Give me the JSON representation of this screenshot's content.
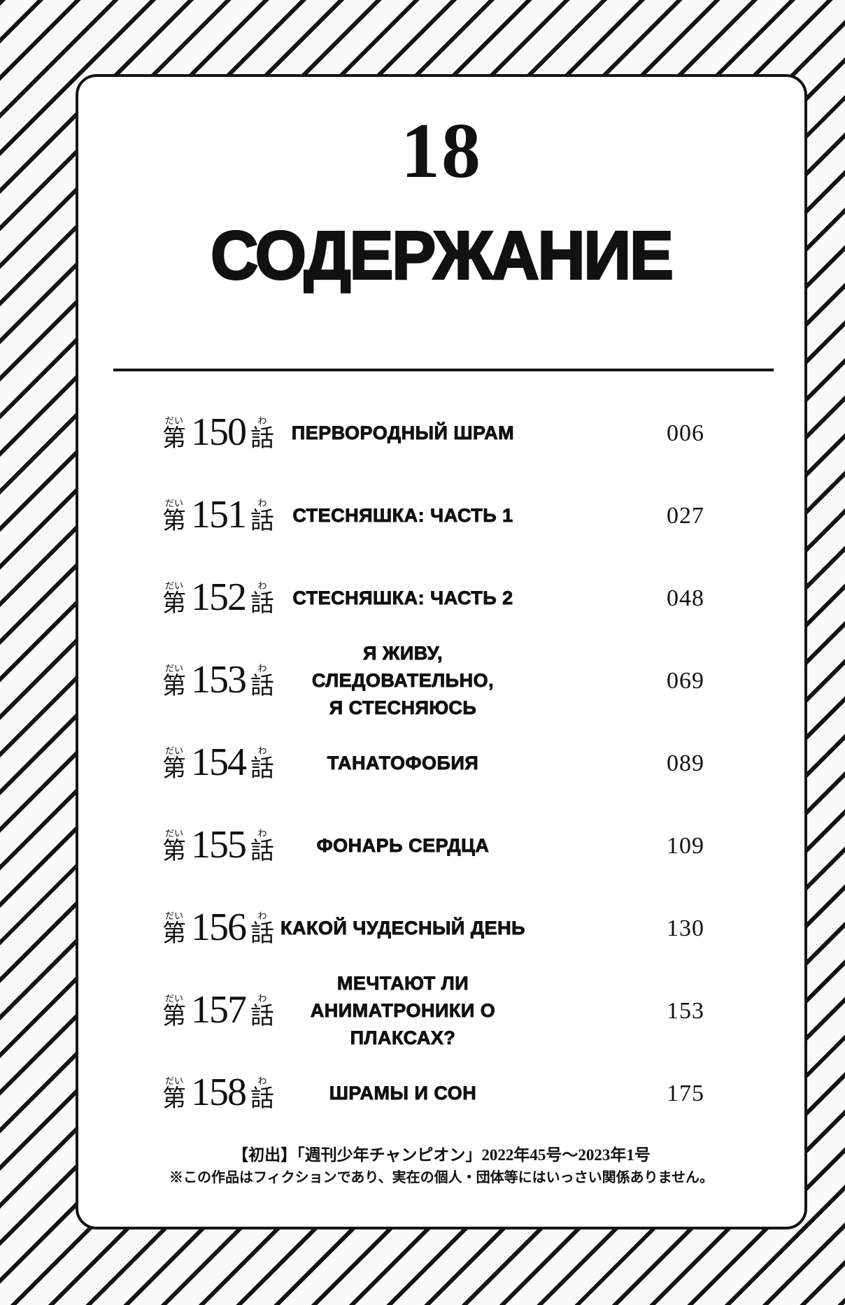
{
  "colors": {
    "ink": "#141414",
    "paper": "#ffffff"
  },
  "header": {
    "volume_number": "18",
    "title": "СОДЕРЖАНИЕ"
  },
  "chapter_prefix": {
    "kanji": "第",
    "furigana": "だい"
  },
  "chapter_suffix": {
    "kanji": "話",
    "furigana": "わ"
  },
  "chapters": [
    {
      "number": "150",
      "title_lines": [
        "ПЕРВОРОДНЫЙ ШРАМ"
      ],
      "page": "006"
    },
    {
      "number": "151",
      "title_lines": [
        "СТЕСНЯШКА: ЧАСТЬ 1"
      ],
      "page": "027"
    },
    {
      "number": "152",
      "title_lines": [
        "СТЕСНЯШКА: ЧАСТЬ 2"
      ],
      "page": "048"
    },
    {
      "number": "153",
      "title_lines": [
        "Я ЖИВУ, СЛЕДОВАТЕЛЬНО,",
        "Я СТЕСНЯЮСЬ"
      ],
      "page": "069"
    },
    {
      "number": "154",
      "title_lines": [
        "ТАНАТОФОБИЯ"
      ],
      "page": "089"
    },
    {
      "number": "155",
      "title_lines": [
        "ФОНАРЬ СЕРДЦА"
      ],
      "page": "109"
    },
    {
      "number": "156",
      "title_lines": [
        "КАКОЙ ЧУДЕСНЫЙ ДЕНЬ"
      ],
      "page": "130"
    },
    {
      "number": "157",
      "title_lines": [
        "МЕЧТАЮТ ЛИ",
        "АНИМАТРОНИКИ О",
        "ПЛАКСАХ?"
      ],
      "page": "153"
    },
    {
      "number": "158",
      "title_lines": [
        "ШРАМЫ И СОН"
      ],
      "page": "175"
    }
  ],
  "footer": {
    "line1": "【初出】「週刊少年チャンピオン」2022年45号～2023年1号",
    "line2": "※この作品はフィクションであり、実在の個人・団体等にはいっさい関係ありません。"
  }
}
